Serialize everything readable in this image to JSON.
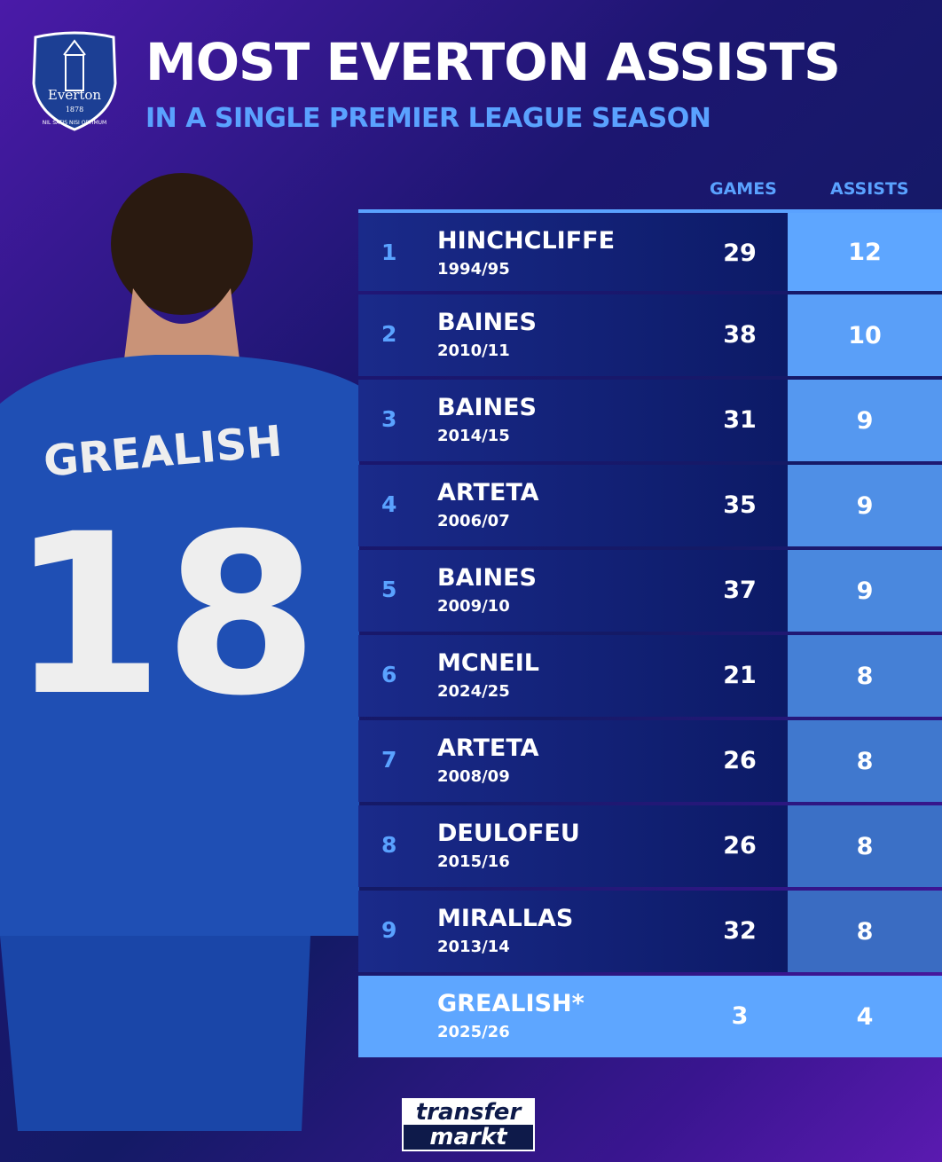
{
  "header": {
    "title": "MOST EVERTON ASSISTS",
    "subtitle": "IN A SINGLE PREMIER LEAGUE SEASON"
  },
  "crest": {
    "name": "Everton",
    "year": "1878",
    "motto": "NIL SATIS NISI OPTIMUM"
  },
  "player_image": {
    "shirt_name": "GREALISH",
    "shirt_number": "18"
  },
  "columns": {
    "games": "GAMES",
    "assists": "ASSISTS"
  },
  "rows": [
    {
      "rank": "1",
      "name": "HINCHCLIFFE",
      "season": "1994/95",
      "games": "29",
      "assists": "12",
      "color": "#5ea6ff"
    },
    {
      "rank": "2",
      "name": "BAINES",
      "season": "2010/11",
      "games": "38",
      "assists": "10",
      "color": "#5a9ff8"
    },
    {
      "rank": "3",
      "name": "BAINES",
      "season": "2014/15",
      "games": "31",
      "assists": "9",
      "color": "#5598f0"
    },
    {
      "rank": "4",
      "name": "ARTETA",
      "season": "2006/07",
      "games": "35",
      "assists": "9",
      "color": "#4f8fe6"
    },
    {
      "rank": "5",
      "name": "BAINES",
      "season": "2009/10",
      "games": "37",
      "assists": "9",
      "color": "#4a88de"
    },
    {
      "rank": "6",
      "name": "MCNEIL",
      "season": "2024/25",
      "games": "21",
      "assists": "8",
      "color": "#4580d6"
    },
    {
      "rank": "7",
      "name": "ARTETA",
      "season": "2008/09",
      "games": "26",
      "assists": "8",
      "color": "#4078ce"
    },
    {
      "rank": "8",
      "name": "DEULOFEU",
      "season": "2015/16",
      "games": "26",
      "assists": "8",
      "color": "#3b70c6"
    },
    {
      "rank": "9",
      "name": "MIRALLAS",
      "season": "2013/14",
      "games": "32",
      "assists": "8",
      "color": "#3a6cc2"
    },
    {
      "rank": "",
      "name": "GREALISH*",
      "season": "2025/26",
      "games": "3",
      "assists": "4",
      "color": "#5ea6ff"
    }
  ],
  "footer": {
    "logo_line1": "transfer",
    "logo_line2": "markt"
  }
}
